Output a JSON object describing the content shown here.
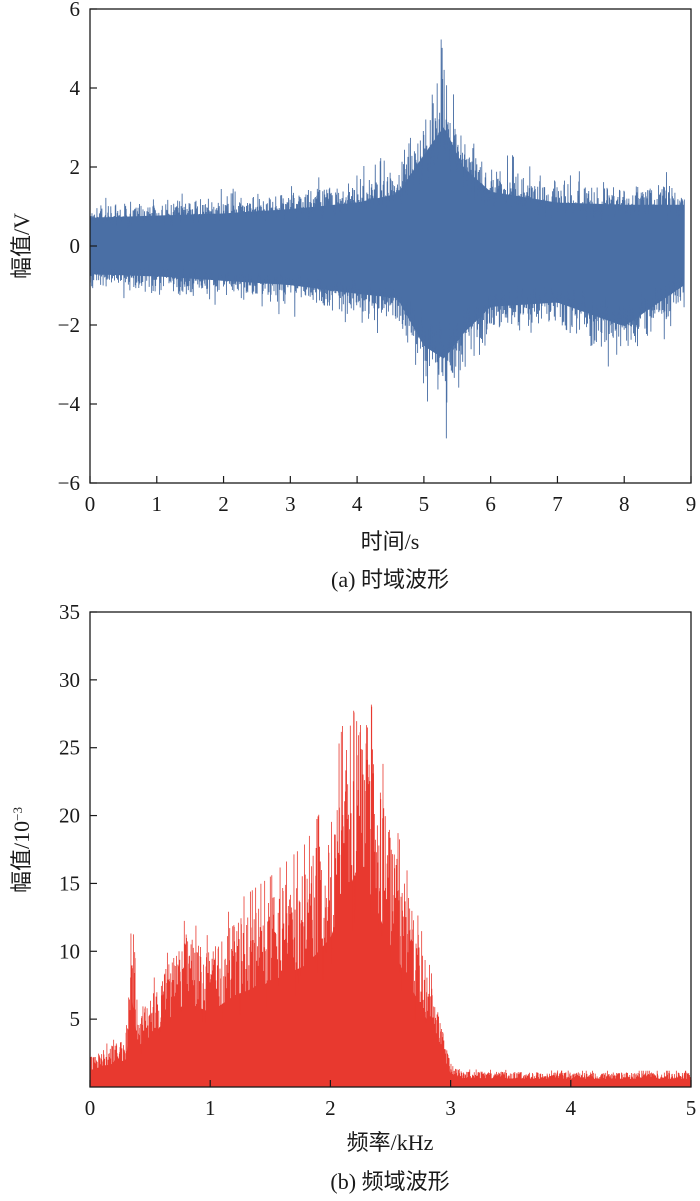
{
  "chart_data": [
    {
      "type": "line",
      "caption": "(a) 时域波形",
      "xlabel": "时间/s",
      "ylabel": "幅值/V",
      "xlim": [
        0,
        9
      ],
      "ylim": [
        -6,
        6
      ],
      "xticks": [
        0,
        1,
        2,
        3,
        4,
        5,
        6,
        7,
        8,
        9
      ],
      "yticks": [
        -6,
        -4,
        -2,
        0,
        2,
        4,
        6
      ],
      "data_extent": [
        0,
        8.9
      ],
      "color": "#4a6fa5",
      "grid": false,
      "envelope": {
        "t": [
          0,
          1,
          2,
          3,
          4,
          4.6,
          5.0,
          5.3,
          5.6,
          6.0,
          7.0,
          8.0,
          8.9
        ],
        "upper": [
          1.3,
          1.4,
          1.5,
          1.7,
          2.0,
          2.4,
          4.2,
          5.5,
          3.6,
          2.5,
          2.0,
          1.9,
          1.9
        ],
        "lower": [
          -1.3,
          -1.4,
          -1.6,
          -1.8,
          -2.2,
          -2.4,
          -4.6,
          -5.2,
          -4.0,
          -2.8,
          -2.6,
          -3.7,
          -1.8
        ]
      }
    },
    {
      "type": "line",
      "caption": "(b) 频域波形",
      "xlabel": "频率/kHz",
      "ylabel": "幅值/10",
      "ylabel_exp": "−3",
      "xlim": [
        0,
        5
      ],
      "ylim": [
        0,
        35
      ],
      "xticks": [
        0,
        1,
        2,
        3,
        4,
        5
      ],
      "yticks": [
        5,
        10,
        15,
        20,
        25,
        30,
        35
      ],
      "color": "#e8392f",
      "grid": false,
      "envelope": {
        "f": [
          0,
          0.3,
          0.35,
          0.4,
          0.5,
          0.8,
          1.0,
          1.2,
          1.5,
          1.8,
          2.0,
          2.2,
          2.3,
          2.5,
          2.8,
          3.0,
          3.1,
          4.0,
          5.0
        ],
        "peak": [
          2.5,
          4.0,
          13.0,
          6.0,
          7.5,
          12.5,
          11.0,
          13.5,
          15.5,
          18.0,
          22.0,
          31.2,
          30.0,
          21.0,
          10.0,
          2.0,
          1.3,
          1.2,
          1.2
        ]
      }
    }
  ]
}
